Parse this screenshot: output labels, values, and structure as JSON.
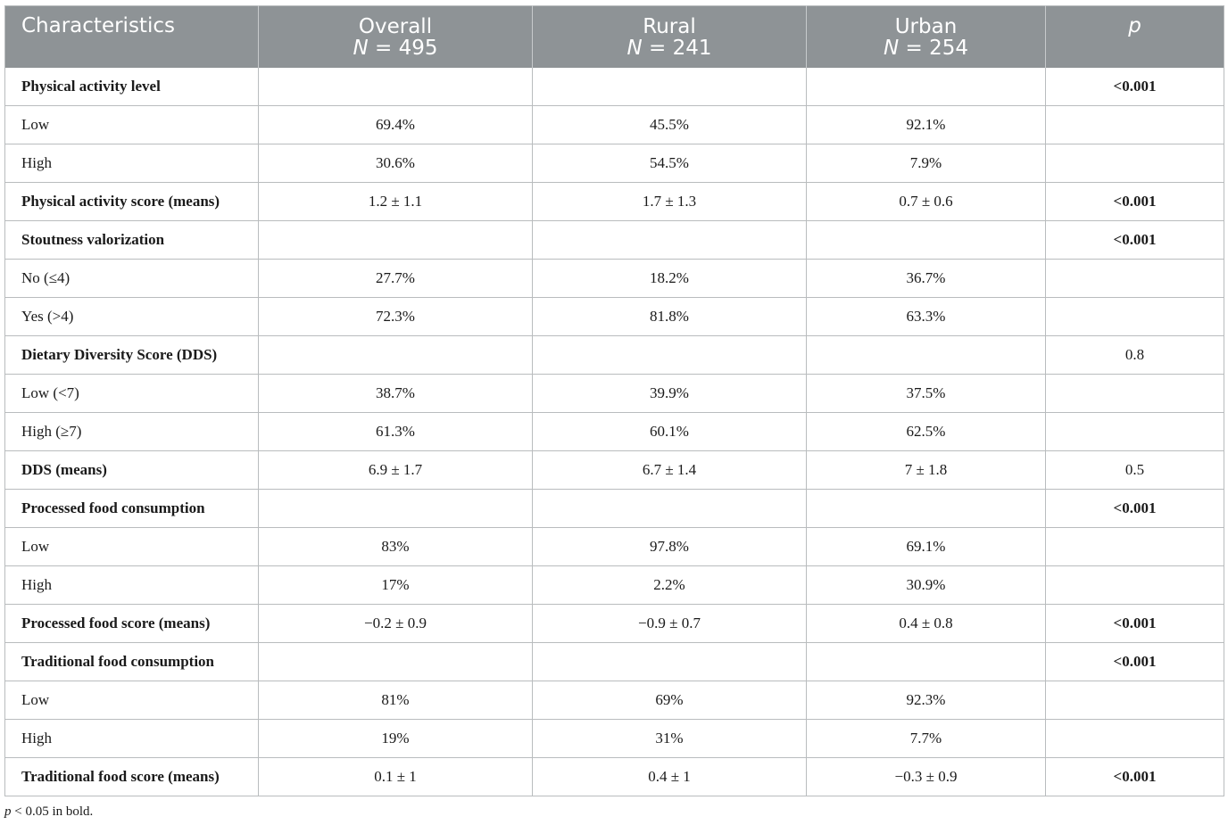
{
  "header": {
    "characteristics": "Characteristics",
    "overall": {
      "label": "Overall",
      "n_prefix": "N",
      "n_value": " = 495"
    },
    "rural": {
      "label": "Rural",
      "n_prefix": "N",
      "n_value": " = 241"
    },
    "urban": {
      "label": "Urban",
      "n_prefix": "N",
      "n_value": " = 254"
    },
    "p": "p"
  },
  "rows": [
    {
      "label": "Physical activity level",
      "overall": "",
      "rural": "",
      "urban": "",
      "p": "<0.001",
      "group": true,
      "p_bold": true
    },
    {
      "label": "Low",
      "overall": "69.4%",
      "rural": "45.5%",
      "urban": "92.1%",
      "p": "",
      "group": false,
      "p_bold": false
    },
    {
      "label": "High",
      "overall": "30.6%",
      "rural": "54.5%",
      "urban": "7.9%",
      "p": "",
      "group": false,
      "p_bold": false
    },
    {
      "label": "Physical activity score (means)",
      "overall": "1.2 ± 1.1",
      "rural": "1.7 ± 1.3",
      "urban": "0.7 ± 0.6",
      "p": "<0.001",
      "group": true,
      "p_bold": true
    },
    {
      "label": "Stoutness valorization",
      "overall": "",
      "rural": "",
      "urban": "",
      "p": "<0.001",
      "group": true,
      "p_bold": true
    },
    {
      "label": "No (≤4)",
      "overall": "27.7%",
      "rural": "18.2%",
      "urban": "36.7%",
      "p": "",
      "group": false,
      "p_bold": false
    },
    {
      "label": "Yes (>4)",
      "overall": "72.3%",
      "rural": "81.8%",
      "urban": "63.3%",
      "p": "",
      "group": false,
      "p_bold": false
    },
    {
      "label": "Dietary Diversity Score (DDS)",
      "overall": "",
      "rural": "",
      "urban": "",
      "p": "0.8",
      "group": true,
      "p_bold": false
    },
    {
      "label": "Low (<7)",
      "overall": "38.7%",
      "rural": "39.9%",
      "urban": "37.5%",
      "p": "",
      "group": false,
      "p_bold": false
    },
    {
      "label": "High (≥7)",
      "overall": "61.3%",
      "rural": "60.1%",
      "urban": "62.5%",
      "p": "",
      "group": false,
      "p_bold": false
    },
    {
      "label": "DDS (means)",
      "overall": "6.9 ± 1.7",
      "rural": "6.7 ± 1.4",
      "urban": "7 ± 1.8",
      "p": "0.5",
      "group": true,
      "p_bold": false
    },
    {
      "label": "Processed food consumption",
      "overall": "",
      "rural": "",
      "urban": "",
      "p": "<0.001",
      "group": true,
      "p_bold": true
    },
    {
      "label": "Low",
      "overall": "83%",
      "rural": "97.8%",
      "urban": "69.1%",
      "p": "",
      "group": false,
      "p_bold": false
    },
    {
      "label": "High",
      "overall": "17%",
      "rural": "2.2%",
      "urban": "30.9%",
      "p": "",
      "group": false,
      "p_bold": false
    },
    {
      "label": "Processed food score (means)",
      "overall": "−0.2 ± 0.9",
      "rural": "−0.9 ± 0.7",
      "urban": "0.4 ± 0.8",
      "p": "<0.001",
      "group": true,
      "p_bold": true
    },
    {
      "label": "Traditional food consumption",
      "overall": "",
      "rural": "",
      "urban": "",
      "p": "<0.001",
      "group": true,
      "p_bold": true
    },
    {
      "label": "Low",
      "overall": "81%",
      "rural": "69%",
      "urban": "92.3%",
      "p": "",
      "group": false,
      "p_bold": false
    },
    {
      "label": "High",
      "overall": "19%",
      "rural": "31%",
      "urban": "7.7%",
      "p": "",
      "group": false,
      "p_bold": false
    },
    {
      "label": "Traditional food score (means)",
      "overall": "0.1 ± 1",
      "rural": "0.4 ± 1",
      "urban": "−0.3 ± 0.9",
      "p": "<0.001",
      "group": true,
      "p_bold": true
    }
  ],
  "footnote": {
    "p_symbol": "p",
    "text": " < 0.05 in bold."
  }
}
